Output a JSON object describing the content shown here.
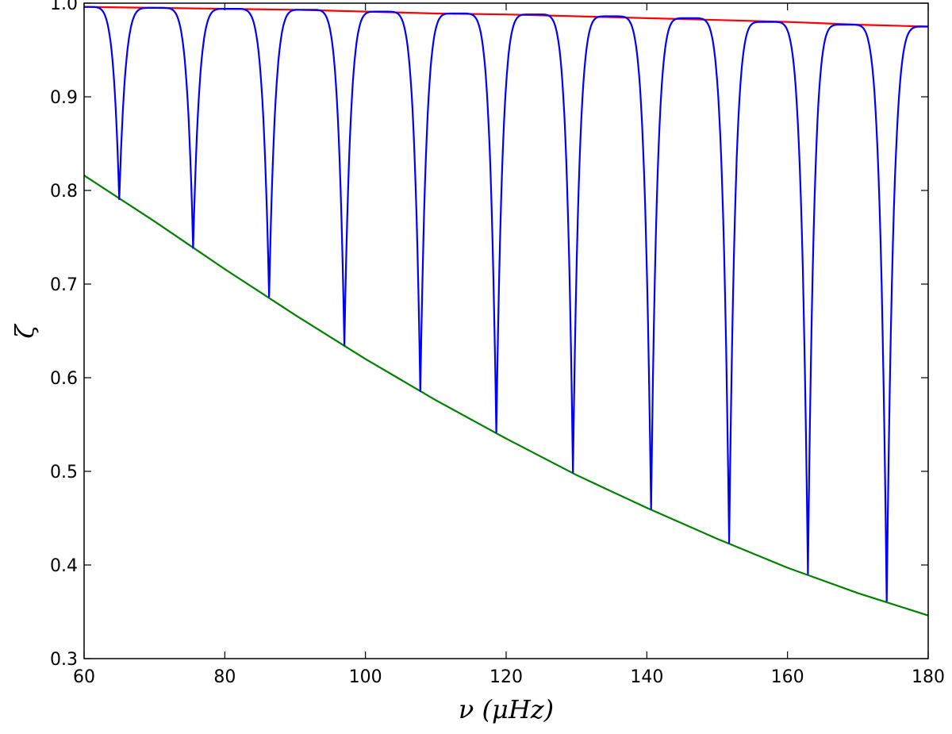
{
  "chart_data": {
    "type": "line",
    "title": "",
    "xlabel": "ν (μHz)",
    "ylabel": "ζ",
    "xlim": [
      60,
      180
    ],
    "ylim": [
      0.3,
      1.0
    ],
    "xticks": [
      60,
      80,
      100,
      120,
      140,
      160,
      180
    ],
    "yticks": [
      0.3,
      0.4,
      0.5,
      0.6,
      0.7,
      0.8,
      0.9,
      1.0
    ],
    "xtick_labels": [
      "60",
      "80",
      "100",
      "120",
      "140",
      "160",
      "180"
    ],
    "ytick_labels": [
      "0.3",
      "0.4",
      "0.5",
      "0.6",
      "0.7",
      "0.8",
      "0.9",
      "1.0"
    ],
    "grid": false,
    "series": [
      {
        "color": "#ff0000",
        "x": [
          60,
          70,
          80,
          90,
          100,
          110,
          120,
          130,
          140,
          150,
          160,
          170,
          180
        ],
        "y": [
          0.996,
          0.995,
          0.994,
          0.993,
          0.991,
          0.989,
          0.988,
          0.986,
          0.984,
          0.982,
          0.98,
          0.977,
          0.975
        ]
      },
      {
        "color": "#008000",
        "x": [
          60,
          70,
          80,
          90,
          100,
          110,
          120,
          130,
          140,
          150,
          160,
          170,
          180
        ],
        "y": [
          0.816,
          0.767,
          0.716,
          0.667,
          0.62,
          0.576,
          0.535,
          0.496,
          0.461,
          0.428,
          0.397,
          0.37,
          0.346
        ]
      },
      {
        "color": "#0000ff",
        "x": [
          60,
          65.0,
          70.2,
          75.5,
          80.8,
          86.3,
          91.6,
          97.0,
          102.3,
          107.8,
          113.1,
          118.6,
          124.0,
          129.5,
          134.9,
          140.6,
          146.0,
          151.7,
          157.1,
          162.9,
          168.3,
          174.1,
          180
        ],
        "y": [
          0.996,
          0.79,
          0.995,
          0.738,
          0.994,
          0.686,
          0.993,
          0.634,
          0.991,
          0.585,
          0.989,
          0.541,
          0.988,
          0.498,
          0.986,
          0.459,
          0.984,
          0.423,
          0.98,
          0.39,
          0.977,
          0.361,
          0.975
        ]
      }
    ]
  }
}
